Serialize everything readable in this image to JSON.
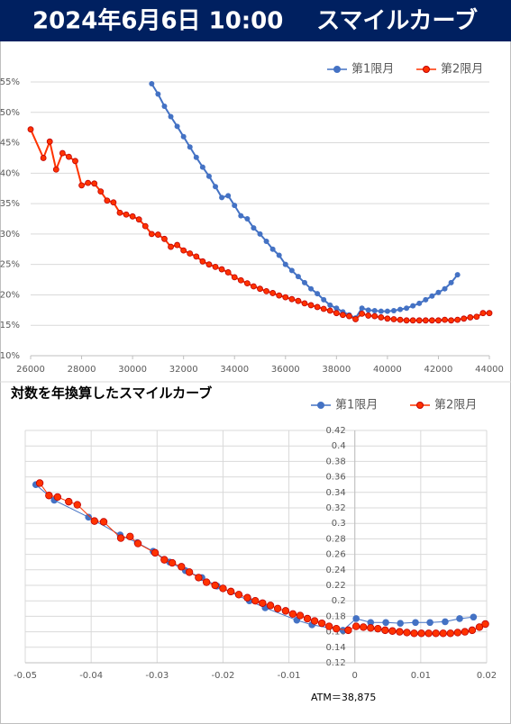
{
  "header": {
    "date": "2024年6月6日 10:00",
    "title": "スマイルカーブ"
  },
  "chart_data": [
    {
      "type": "line",
      "grid": "y",
      "xlim": [
        26000,
        44000
      ],
      "xticks": [
        26000,
        28000,
        30000,
        32000,
        34000,
        36000,
        38000,
        40000,
        42000,
        44000
      ],
      "ylim": [
        10,
        55
      ],
      "yticks": [
        {
          "value": 10,
          "label": "10%"
        },
        {
          "value": 15,
          "label": "15%"
        },
        {
          "value": 20,
          "label": "20%"
        },
        {
          "value": 25,
          "label": "25%"
        },
        {
          "value": 30,
          "label": "30%"
        },
        {
          "value": 35,
          "label": "35%"
        },
        {
          "value": 40,
          "label": "40%"
        },
        {
          "value": 45,
          "label": "45%"
        },
        {
          "value": 50,
          "label": "50%"
        },
        {
          "value": 55,
          "label": "55%"
        }
      ],
      "series": [
        {
          "name": "第1限月",
          "color": "#4472c4",
          "x": [
            30750,
            31000,
            31250,
            31500,
            31750,
            32000,
            32250,
            32500,
            32750,
            33000,
            33250,
            33500,
            33750,
            34000,
            34250,
            34500,
            34750,
            35000,
            35250,
            35500,
            35750,
            36000,
            36250,
            36500,
            36750,
            37000,
            37250,
            37500,
            37750,
            38000,
            38250,
            38500,
            38750,
            39000,
            39250,
            39500,
            39750,
            40000,
            40250,
            40500,
            40750,
            41000,
            41250,
            41500,
            41750,
            42000,
            42250,
            42500,
            42750
          ],
          "values": [
            54.7,
            53.0,
            51.0,
            49.3,
            47.7,
            46.0,
            44.3,
            42.6,
            41.0,
            39.5,
            37.8,
            36.0,
            36.3,
            34.7,
            33.0,
            32.5,
            31.0,
            30.0,
            28.8,
            27.5,
            26.5,
            25.0,
            24.0,
            23.0,
            22.0,
            21.0,
            20.2,
            19.2,
            18.3,
            17.8,
            17.2,
            16.7,
            16.2,
            17.8,
            17.5,
            17.4,
            17.3,
            17.3,
            17.4,
            17.6,
            17.8,
            18.2,
            18.6,
            19.2,
            19.8,
            20.4,
            21.0,
            22.0,
            23.3
          ]
        },
        {
          "name": "第2限月",
          "color": "#ff3300",
          "x": [
            26000,
            26500,
            26750,
            27000,
            27250,
            27500,
            27750,
            28000,
            28250,
            28500,
            28750,
            29000,
            29250,
            29500,
            29750,
            30000,
            30250,
            30500,
            30750,
            31000,
            31250,
            31500,
            31750,
            32000,
            32250,
            32500,
            32750,
            33000,
            33250,
            33500,
            33750,
            34000,
            34250,
            34500,
            34750,
            35000,
            35250,
            35500,
            35750,
            36000,
            36250,
            36500,
            36750,
            37000,
            37250,
            37500,
            37750,
            38000,
            38250,
            38500,
            38750,
            39000,
            39250,
            39500,
            39750,
            40000,
            40250,
            40500,
            40750,
            41000,
            41250,
            41500,
            41750,
            42000,
            42250,
            42500,
            42750,
            43000,
            43250,
            43500,
            43750,
            44000
          ],
          "values": [
            47.2,
            42.5,
            45.2,
            40.6,
            43.3,
            42.7,
            42.0,
            38.0,
            38.4,
            38.3,
            37.0,
            35.5,
            35.2,
            33.5,
            33.2,
            32.9,
            32.4,
            31.3,
            30.0,
            29.9,
            29.2,
            27.9,
            28.2,
            27.3,
            26.8,
            26.3,
            25.5,
            25.0,
            24.6,
            24.2,
            23.7,
            22.9,
            22.4,
            21.9,
            21.4,
            21.0,
            20.6,
            20.3,
            19.9,
            19.6,
            19.3,
            19.0,
            18.6,
            18.3,
            18.0,
            17.7,
            17.4,
            17.0,
            16.7,
            16.5,
            16.0,
            16.9,
            16.6,
            16.5,
            16.3,
            16.1,
            16.0,
            15.9,
            15.8,
            15.8,
            15.8,
            15.8,
            15.8,
            15.8,
            15.9,
            15.8,
            15.9,
            16.1,
            16.3,
            16.4,
            17.0,
            17.0
          ]
        }
      ]
    },
    {
      "type": "line",
      "grid": "both",
      "title": "対数を年換算したスマイルカーブ",
      "annotation": "ATM＝38,875",
      "xlim": [
        -0.05,
        0.02
      ],
      "xticks": [
        -0.05,
        -0.04,
        -0.03,
        -0.02,
        -0.01,
        0,
        0.01,
        0.02
      ],
      "ylim": [
        0.12,
        0.42
      ],
      "yticks": [
        0.12,
        0.14,
        0.16,
        0.18,
        0.2,
        0.22,
        0.24,
        0.26,
        0.28,
        0.3,
        0.32,
        0.34,
        0.36,
        0.38,
        0.4,
        0.42
      ],
      "series": [
        {
          "name": "第1限月",
          "color": "#4472c4",
          "x": [
            -0.0484,
            -0.0456,
            -0.0404,
            -0.0356,
            -0.033,
            -0.0306,
            -0.0281,
            -0.0257,
            -0.0232,
            -0.0209,
            -0.016,
            -0.0136,
            -0.0088,
            -0.0065,
            -0.0018,
            0.0002,
            0.0024,
            0.0047,
            0.0069,
            0.0092,
            0.0114,
            0.0137,
            0.0159,
            0.018
          ],
          "values": [
            0.35,
            0.33,
            0.308,
            0.285,
            0.275,
            0.264,
            0.25,
            0.239,
            0.23,
            0.219,
            0.2,
            0.191,
            0.175,
            0.169,
            0.162,
            0.177,
            0.172,
            0.172,
            0.171,
            0.172,
            0.172,
            0.173,
            0.177,
            0.179
          ]
        },
        {
          "name": "第2限月",
          "color": "#ff3300",
          "x": [
            -0.0478,
            -0.0464,
            -0.0451,
            -0.0434,
            -0.0421,
            -0.0395,
            -0.0381,
            -0.0355,
            -0.0341,
            -0.0329,
            -0.0303,
            -0.0289,
            -0.0277,
            -0.0263,
            -0.0251,
            -0.0237,
            -0.0225,
            -0.0212,
            -0.02,
            -0.0188,
            -0.0176,
            -0.0163,
            -0.0151,
            -0.014,
            -0.0128,
            -0.0117,
            -0.0105,
            -0.0094,
            -0.0083,
            -0.0072,
            -0.0061,
            -0.005,
            -0.0039,
            -0.0028,
            -0.001,
            0.0002,
            0.0013,
            0.0024,
            0.0035,
            0.0046,
            0.0057,
            0.0068,
            0.0079,
            0.009,
            0.0101,
            0.0112,
            0.0123,
            0.0134,
            0.0145,
            0.0156,
            0.0167,
            0.0178,
            0.0189,
            0.0198
          ],
          "values": [
            0.352,
            0.336,
            0.334,
            0.328,
            0.324,
            0.303,
            0.302,
            0.281,
            0.283,
            0.274,
            0.262,
            0.253,
            0.249,
            0.244,
            0.237,
            0.23,
            0.224,
            0.22,
            0.216,
            0.212,
            0.208,
            0.204,
            0.2,
            0.197,
            0.194,
            0.19,
            0.187,
            0.183,
            0.181,
            0.177,
            0.174,
            0.171,
            0.167,
            0.164,
            0.162,
            0.167,
            0.166,
            0.165,
            0.164,
            0.162,
            0.161,
            0.16,
            0.159,
            0.158,
            0.158,
            0.158,
            0.158,
            0.158,
            0.158,
            0.159,
            0.16,
            0.162,
            0.166,
            0.17
          ]
        }
      ]
    }
  ]
}
